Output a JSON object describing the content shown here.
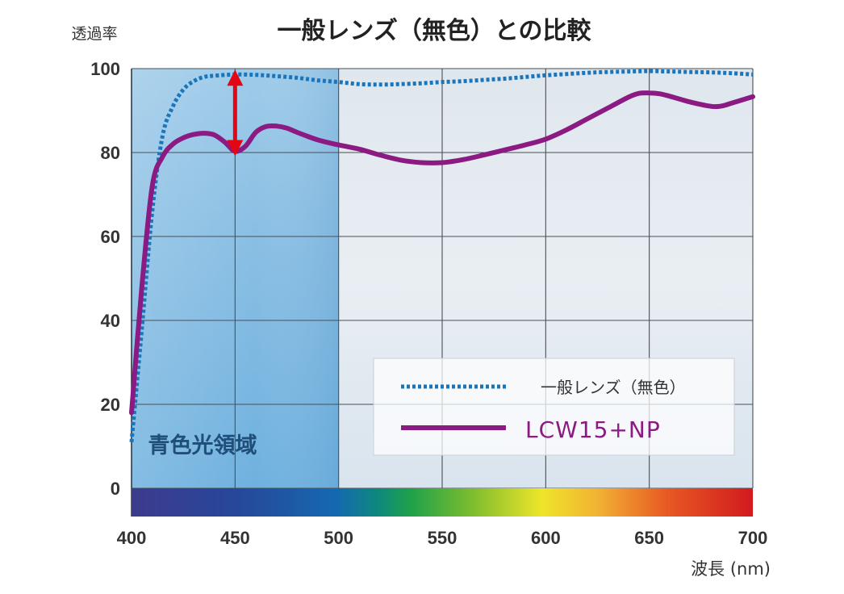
{
  "chart_data": {
    "type": "line",
    "title": "一般レンズ（無色）との比較",
    "ylabel": "透過率",
    "xlabel": "波長 (nm)",
    "xlim": [
      400,
      700
    ],
    "ylim": [
      0,
      100
    ],
    "x_ticks": [
      "400",
      "450",
      "500",
      "550",
      "600",
      "650",
      "700"
    ],
    "highlight_tick": "450",
    "y_ticks": [
      "100",
      "80",
      "60",
      "40",
      "20",
      "0"
    ],
    "grid": true,
    "region_label": "青色光領域",
    "region_range": [
      400,
      500
    ],
    "legend_position": "bottom-right",
    "series": [
      {
        "name": "一般レンズ（無色）",
        "style": "dotted",
        "color": "#1a75bb",
        "points": [
          [
            400,
            11
          ],
          [
            405,
            38
          ],
          [
            410,
            66
          ],
          [
            415,
            84
          ],
          [
            420,
            91
          ],
          [
            425,
            95
          ],
          [
            430,
            97
          ],
          [
            435,
            98
          ],
          [
            440,
            98.3
          ],
          [
            450,
            98.6
          ],
          [
            460,
            98.5
          ],
          [
            470,
            98.2
          ],
          [
            480,
            97.8
          ],
          [
            490,
            97.2
          ],
          [
            500,
            96.8
          ],
          [
            510,
            96.3
          ],
          [
            520,
            96.2
          ],
          [
            530,
            96.3
          ],
          [
            540,
            96.5
          ],
          [
            550,
            96.8
          ],
          [
            560,
            97.0
          ],
          [
            570,
            97.3
          ],
          [
            580,
            97.6
          ],
          [
            590,
            98
          ],
          [
            600,
            98.4
          ],
          [
            610,
            98.7
          ],
          [
            620,
            99
          ],
          [
            630,
            99.2
          ],
          [
            640,
            99.3
          ],
          [
            650,
            99.4
          ],
          [
            660,
            99.3
          ],
          [
            670,
            99.2
          ],
          [
            680,
            99.1
          ],
          [
            690,
            98.9
          ],
          [
            700,
            98.6
          ]
        ]
      },
      {
        "name": "LCW15+NP",
        "style": "solid",
        "color": "#8b1a82",
        "points": [
          [
            400,
            18
          ],
          [
            405,
            48
          ],
          [
            410,
            72
          ],
          [
            415,
            79
          ],
          [
            420,
            82
          ],
          [
            425,
            83.5
          ],
          [
            430,
            84.3
          ],
          [
            435,
            84.6
          ],
          [
            440,
            84.2
          ],
          [
            445,
            82.5
          ],
          [
            450,
            80.3
          ],
          [
            455,
            81.5
          ],
          [
            460,
            84.8
          ],
          [
            465,
            86.2
          ],
          [
            470,
            86.3
          ],
          [
            475,
            85.8
          ],
          [
            480,
            84.8
          ],
          [
            490,
            83
          ],
          [
            500,
            81.8
          ],
          [
            510,
            80.8
          ],
          [
            520,
            79.4
          ],
          [
            530,
            78.2
          ],
          [
            540,
            77.6
          ],
          [
            550,
            77.6
          ],
          [
            560,
            78.3
          ],
          [
            570,
            79.4
          ],
          [
            580,
            80.6
          ],
          [
            590,
            81.8
          ],
          [
            600,
            83.2
          ],
          [
            610,
            85.4
          ],
          [
            620,
            88
          ],
          [
            630,
            90.6
          ],
          [
            640,
            93.2
          ],
          [
            645,
            94.1
          ],
          [
            650,
            94.2
          ],
          [
            655,
            94
          ],
          [
            660,
            93.4
          ],
          [
            670,
            92
          ],
          [
            680,
            91
          ],
          [
            685,
            91.1
          ],
          [
            690,
            91.8
          ],
          [
            700,
            93.3
          ]
        ]
      }
    ],
    "annotation": {
      "type": "double-arrow",
      "x": 450,
      "y_from": 80.3,
      "y_to": 98.6,
      "color": "#e30613"
    }
  }
}
